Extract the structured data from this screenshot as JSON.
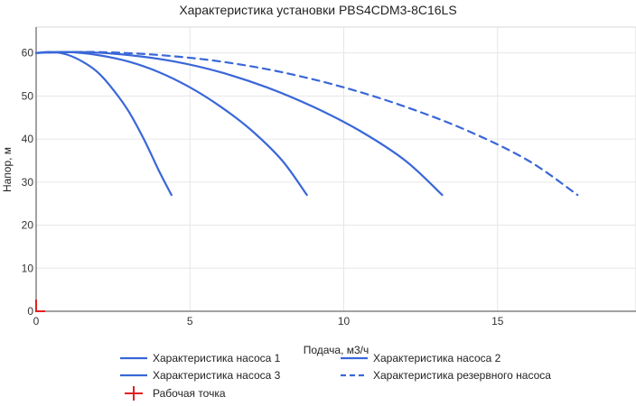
{
  "chart_data": {
    "type": "line",
    "title": "Характеристика установки PBS4CDM3-8C16LS",
    "xlabel": "Подача, м3/ч",
    "ylabel": "Напор, м",
    "xlim": [
      0,
      19.5
    ],
    "ylim": [
      0,
      66
    ],
    "xticks": [
      0,
      5,
      10,
      15
    ],
    "yticks": [
      0,
      10,
      20,
      30,
      40,
      50,
      60
    ],
    "grid": true,
    "legend_position": "bottom",
    "series": [
      {
        "name": "Характеристика насоса 1",
        "color": "#3a67d8",
        "dash": "solid",
        "x": [
          0,
          0.5,
          1.0,
          1.5,
          2.0,
          2.5,
          3.0,
          3.5,
          4.0,
          4.4
        ],
        "y": [
          60,
          60.2,
          59.6,
          58.0,
          55.5,
          51.5,
          46.5,
          40.0,
          32.5,
          27.0
        ]
      },
      {
        "name": "Характеристика насоса 2",
        "color": "#3a67d8",
        "dash": "solid",
        "x": [
          0,
          1,
          2,
          3,
          4,
          5,
          6,
          7,
          8,
          8.8
        ],
        "y": [
          60,
          60.2,
          59.5,
          58.0,
          55.5,
          52.0,
          47.5,
          42.0,
          35.0,
          27.0
        ]
      },
      {
        "name": "Характеристика насоса 3",
        "color": "#3a67d8",
        "dash": "solid",
        "x": [
          0,
          1.5,
          3,
          4.5,
          6,
          7.5,
          9,
          10.5,
          12,
          13.2
        ],
        "y": [
          60,
          60.2,
          59.5,
          58.0,
          55.5,
          52.0,
          47.5,
          42.0,
          35.0,
          27.0
        ]
      },
      {
        "name": "Характеристика резервного насоса",
        "color": "#3a67d8",
        "dash": "dashed",
        "x": [
          0,
          2,
          4,
          6,
          8,
          10,
          12,
          14,
          16,
          17.6
        ],
        "y": [
          60,
          60.2,
          59.5,
          58.0,
          55.5,
          52.0,
          47.5,
          42.0,
          35.0,
          27.0
        ]
      }
    ],
    "operating_point": {
      "name": "Рабочая точка",
      "color": "#e02020",
      "x": 0,
      "y": 0
    }
  }
}
